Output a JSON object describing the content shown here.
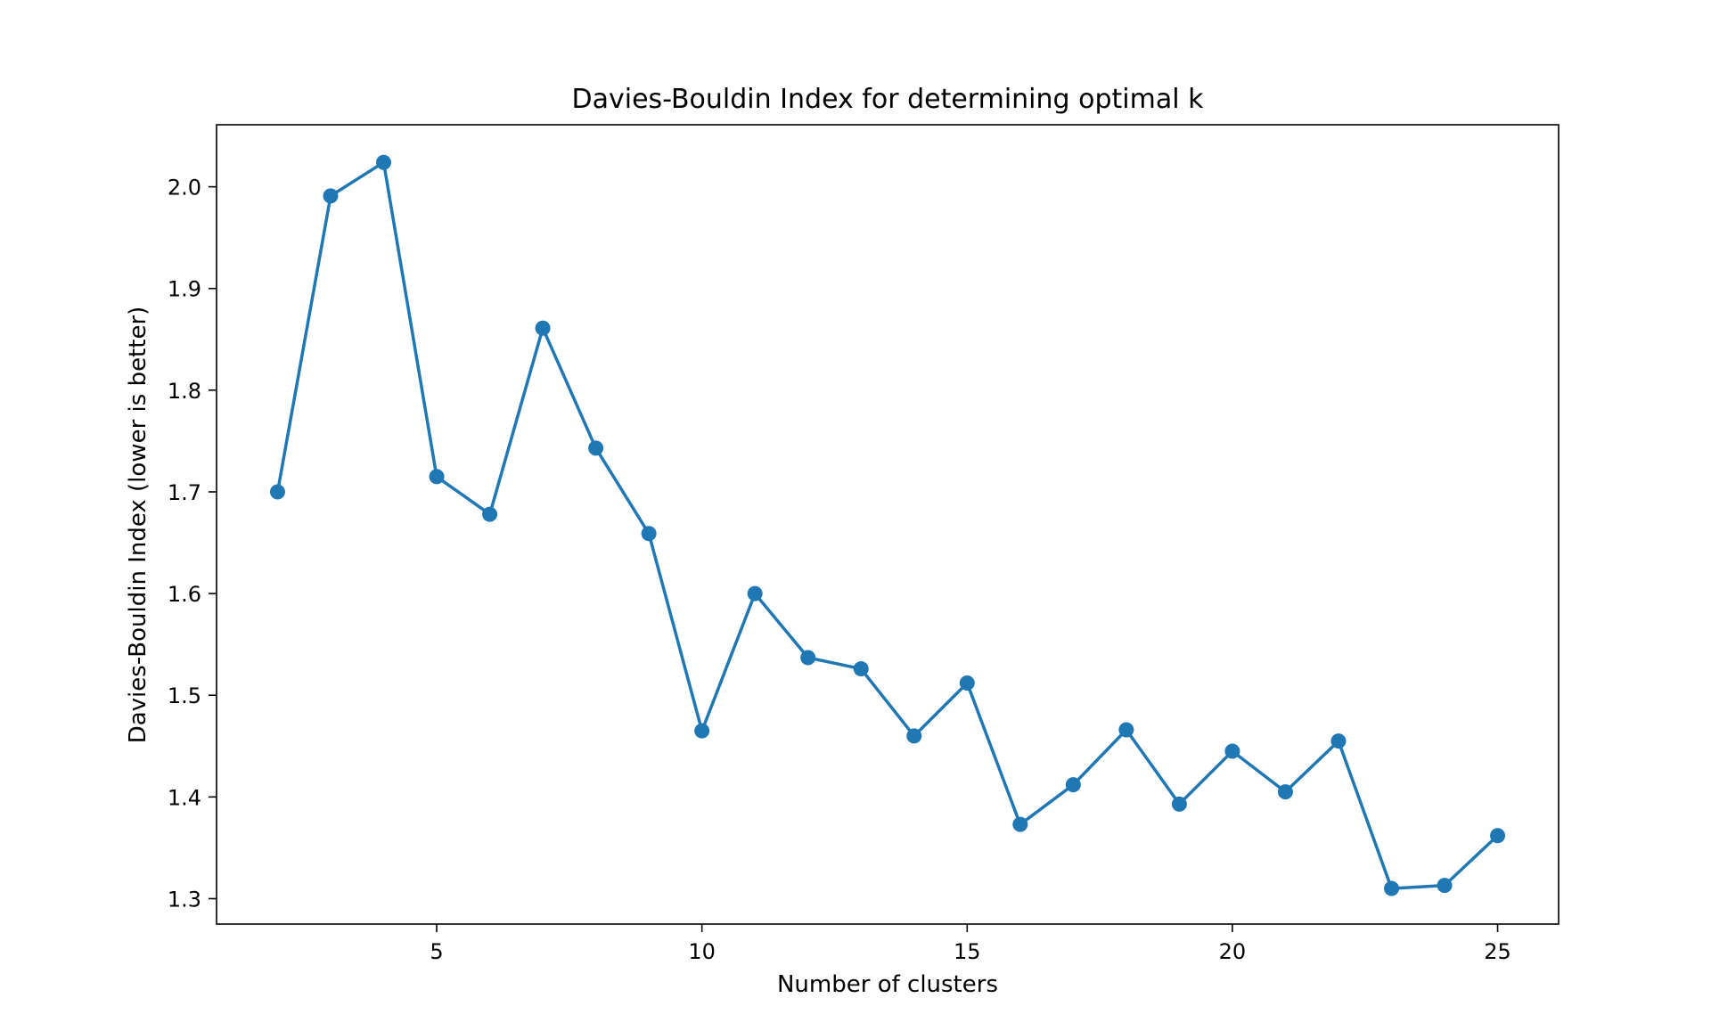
{
  "chart_data": {
    "type": "line",
    "title": "Davies-Bouldin Index for determining optimal k",
    "xlabel": "Number of clusters",
    "ylabel": "Davies-Bouldin Index (lower is better)",
    "xlim": [
      0.85,
      26.15
    ],
    "ylim": [
      1.275,
      2.061
    ],
    "xticks": [
      5,
      10,
      15,
      20,
      25
    ],
    "xtick_labels": [
      "5",
      "10",
      "15",
      "20",
      "25"
    ],
    "yticks": [
      1.3,
      1.4,
      1.5,
      1.6,
      1.7,
      1.8,
      1.9,
      2.0
    ],
    "ytick_labels": [
      "1.3",
      "1.4",
      "1.5",
      "1.6",
      "1.7",
      "1.8",
      "1.9",
      "2.0"
    ],
    "grid": false,
    "marker": "circle",
    "color": "#1f77b4",
    "x": [
      2,
      3,
      4,
      5,
      6,
      7,
      8,
      9,
      10,
      11,
      12,
      13,
      14,
      15,
      16,
      17,
      18,
      19,
      20,
      21,
      22,
      23,
      24,
      25
    ],
    "y": [
      1.7,
      1.991,
      2.024,
      1.715,
      1.678,
      1.861,
      1.743,
      1.659,
      1.465,
      1.6,
      1.537,
      1.526,
      1.46,
      1.512,
      1.373,
      1.412,
      1.466,
      1.393,
      1.445,
      1.405,
      1.455,
      1.31,
      1.313,
      1.362
    ]
  }
}
